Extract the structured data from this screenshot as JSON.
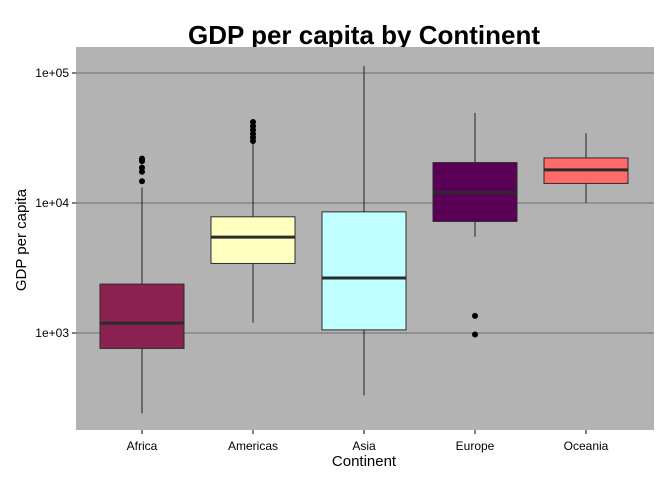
{
  "chart_data": {
    "type": "boxplot",
    "title": "GDP per capita by Continent",
    "xlabel": "Continent",
    "ylabel": "GDP per capita",
    "yscale": "log10",
    "ylim": [
      200,
      130000
    ],
    "yticks": [
      {
        "value": 1000,
        "label": "1e+03"
      },
      {
        "value": 10000,
        "label": "1e+04"
      },
      {
        "value": 100000,
        "label": "1e+05"
      }
    ],
    "grid": true,
    "legend": "none",
    "categories": [
      "Africa",
      "Americas",
      "Asia",
      "Europe",
      "Oceania"
    ],
    "boxes": [
      {
        "category": "Africa",
        "min": 241,
        "q1": 761,
        "median": 1192,
        "q3": 2377,
        "max": 13200,
        "outliers": [
          14700,
          17400,
          18700,
          21000,
          21500,
          21950
        ],
        "color": "#8B2252"
      },
      {
        "category": "Americas",
        "min": 1200,
        "q1": 3428,
        "median": 5466,
        "q3": 7830,
        "max": 28500,
        "outliers": [
          30000,
          32000,
          34000,
          36500,
          39000,
          42000
        ],
        "color": "#FFFFC0"
      },
      {
        "category": "Asia",
        "min": 331,
        "q1": 1057,
        "median": 2647,
        "q3": 8549,
        "max": 113523,
        "outliers": [],
        "color": "#C0FFFF"
      },
      {
        "category": "Europe",
        "min": 5500,
        "q1": 7213,
        "median": 12082,
        "q3": 20461,
        "max": 49357,
        "outliers": [
          974,
          1355
        ],
        "color": "#5A0057"
      },
      {
        "category": "Oceania",
        "min": 10040,
        "q1": 14142,
        "median": 17983,
        "q3": 22214,
        "max": 34435,
        "outliers": [],
        "color": "#FF6A6A"
      }
    ]
  }
}
